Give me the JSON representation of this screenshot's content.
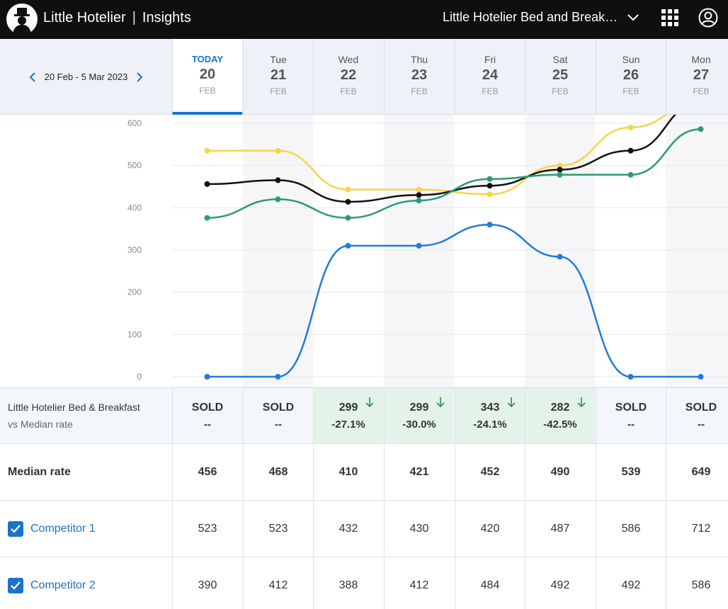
{
  "app": {
    "brand": "Little Hotelier",
    "section": "Insights",
    "property_name": "Little Hotelier Bed and Break…"
  },
  "date_range": {
    "label": "20 Feb - 5 Mar 2023"
  },
  "days": [
    {
      "dow": "TODAY",
      "day": "20",
      "month": "FEB"
    },
    {
      "dow": "Tue",
      "day": "21",
      "month": "FEB"
    },
    {
      "dow": "Wed",
      "day": "22",
      "month": "FEB"
    },
    {
      "dow": "Thu",
      "day": "23",
      "month": "FEB"
    },
    {
      "dow": "Fri",
      "day": "24",
      "month": "FEB"
    },
    {
      "dow": "Sat",
      "day": "25",
      "month": "FEB"
    },
    {
      "dow": "Sun",
      "day": "26",
      "month": "FEB"
    },
    {
      "dow": "Mon",
      "day": "27",
      "month": "FEB"
    }
  ],
  "chart_data": {
    "type": "line",
    "y_ticks": [
      "600",
      "500",
      "400",
      "300",
      "200",
      "100",
      "0"
    ],
    "ylim": [
      0,
      600
    ],
    "series": [
      {
        "color": "#f5d547",
        "values": [
          535,
          535,
          443,
          443,
          432,
          500,
          590,
          650
        ]
      },
      {
        "color": "#111111",
        "values": [
          456,
          465,
          414,
          430,
          452,
          490,
          535,
          649
        ]
      },
      {
        "color": "#2a9d6f",
        "values": [
          376,
          420,
          376,
          417,
          468,
          478,
          478,
          586
        ]
      },
      {
        "color": "#1f7be0",
        "values": [
          0,
          0,
          310,
          310,
          360,
          284,
          0,
          0
        ]
      }
    ],
    "shaded_columns": [
      1,
      3,
      5,
      7
    ]
  },
  "table": {
    "own": {
      "label_line1": "Little Hotelier Bed & Breakfast",
      "label_line2": "vs Median rate",
      "cells": [
        {
          "v1": "SOLD",
          "v2": "--",
          "highlight": false
        },
        {
          "v1": "SOLD",
          "v2": "--",
          "highlight": false
        },
        {
          "v1": "299",
          "v2": "-27.1%",
          "highlight": true
        },
        {
          "v1": "299",
          "v2": "-30.0%",
          "highlight": true
        },
        {
          "v1": "343",
          "v2": "-24.1%",
          "highlight": true
        },
        {
          "v1": "282",
          "v2": "-42.5%",
          "highlight": true
        },
        {
          "v1": "SOLD",
          "v2": "--",
          "highlight": false
        },
        {
          "v1": "SOLD",
          "v2": "--",
          "highlight": false
        }
      ]
    },
    "median": {
      "label": "Median rate",
      "values": [
        "456",
        "468",
        "410",
        "421",
        "452",
        "490",
        "539",
        "649"
      ]
    },
    "competitors": [
      {
        "name": "Competitor 1",
        "values": [
          "523",
          "523",
          "432",
          "430",
          "420",
          "487",
          "586",
          "712"
        ]
      },
      {
        "name": "Competitor 2",
        "values": [
          "390",
          "412",
          "388",
          "412",
          "484",
          "492",
          "492",
          "586"
        ]
      }
    ]
  },
  "colors": {
    "accent": "#1a73c9",
    "highlight_green": "#e4f3ea",
    "arrow_green": "#2a8a5a"
  }
}
